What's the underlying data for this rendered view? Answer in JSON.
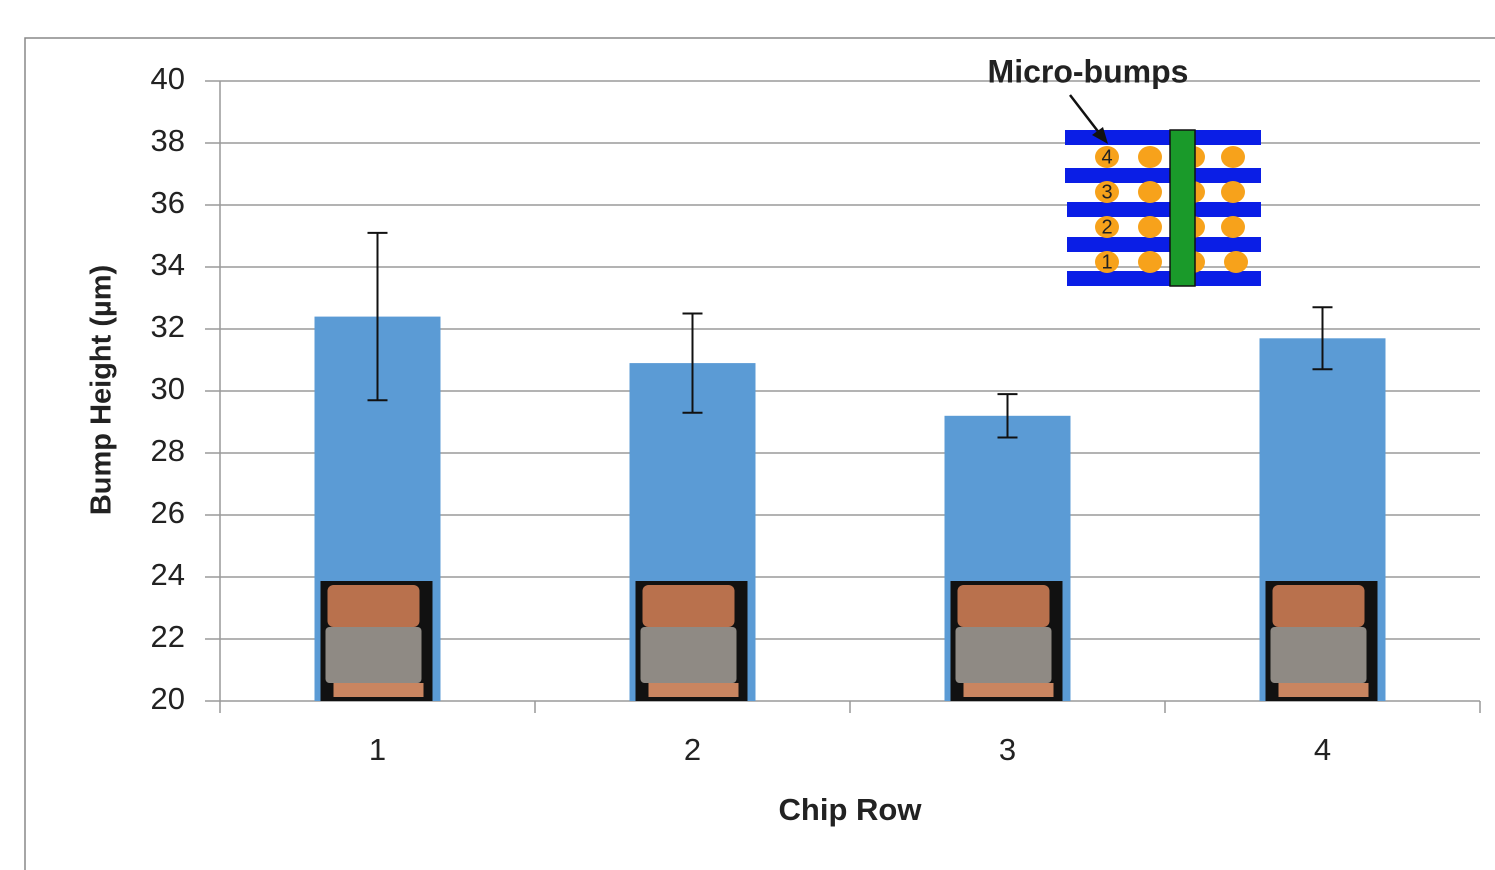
{
  "chart_data": {
    "type": "bar",
    "x_label": "Chip Row",
    "y_label": "Bump Height (µm)",
    "categories": [
      "1",
      "2",
      "3",
      "4"
    ],
    "values": [
      32.4,
      30.9,
      29.2,
      31.7
    ],
    "errors": [
      2.7,
      1.6,
      0.7,
      1.0
    ],
    "color": "#5b9bd5",
    "ylim": [
      20,
      40
    ],
    "yticks": [
      20,
      22,
      24,
      26,
      28,
      30,
      32,
      34,
      36,
      38,
      40
    ],
    "grid": true,
    "annotation": {
      "text": "Micro-bumps",
      "rows": [
        "4",
        "3",
        "2",
        "1"
      ]
    }
  }
}
